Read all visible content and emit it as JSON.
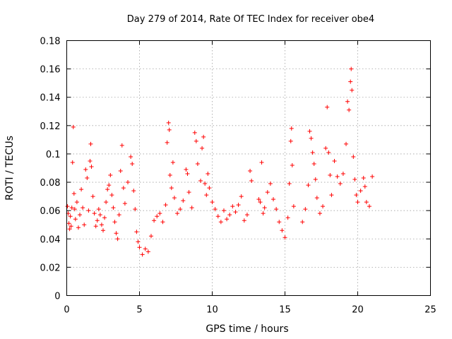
{
  "chart_data": {
    "type": "scatter",
    "title": "Day 279 of 2014, Rate Of TEC Index for receiver obe4",
    "xlabel": "GPS time / hours",
    "ylabel": "ROTI / TECUs",
    "xlim": [
      0,
      25
    ],
    "ylim": [
      0,
      0.18
    ],
    "xticks": [
      0,
      5,
      10,
      15,
      20,
      25
    ],
    "xtick_labels": [
      "0",
      "5",
      "10",
      "15",
      "20",
      "25"
    ],
    "yticks": [
      0,
      0.02,
      0.04,
      0.06,
      0.08,
      0.1,
      0.12,
      0.14,
      0.16,
      0.18
    ],
    "ytick_labels": [
      "0",
      "0.02",
      "0.04",
      "0.06",
      "0.08",
      "0.1",
      "0.12",
      "0.14",
      "0.16",
      "0.18"
    ],
    "grid": true,
    "marker": "plus",
    "series": [
      {
        "color": "#ff0000",
        "points": [
          [
            0.05,
            0.063
          ],
          [
            0.1,
            0.058
          ],
          [
            0.15,
            0.051
          ],
          [
            0.2,
            0.047
          ],
          [
            0.25,
            0.056
          ],
          [
            0.3,
            0.049
          ],
          [
            0.35,
            0.062
          ],
          [
            0.4,
            0.094
          ],
          [
            0.45,
            0.119
          ],
          [
            0.5,
            0.072
          ],
          [
            0.55,
            0.061
          ],
          [
            0.6,
            0.054
          ],
          [
            0.7,
            0.066
          ],
          [
            0.8,
            0.048
          ],
          [
            0.9,
            0.057
          ],
          [
            1.0,
            0.075
          ],
          [
            1.1,
            0.062
          ],
          [
            1.2,
            0.05
          ],
          [
            1.3,
            0.089
          ],
          [
            1.4,
            0.083
          ],
          [
            1.5,
            0.06
          ],
          [
            1.6,
            0.095
          ],
          [
            1.65,
            0.107
          ],
          [
            1.7,
            0.091
          ],
          [
            1.8,
            0.07
          ],
          [
            1.9,
            0.058
          ],
          [
            2.0,
            0.049
          ],
          [
            2.1,
            0.053
          ],
          [
            2.2,
            0.061
          ],
          [
            2.3,
            0.057
          ],
          [
            2.4,
            0.05
          ],
          [
            2.5,
            0.046
          ],
          [
            2.6,
            0.055
          ],
          [
            2.7,
            0.066
          ],
          [
            2.8,
            0.075
          ],
          [
            2.9,
            0.078
          ],
          [
            3.0,
            0.085
          ],
          [
            3.1,
            0.071
          ],
          [
            3.2,
            0.062
          ],
          [
            3.3,
            0.052
          ],
          [
            3.4,
            0.044
          ],
          [
            3.5,
            0.04
          ],
          [
            3.6,
            0.057
          ],
          [
            3.7,
            0.088
          ],
          [
            3.8,
            0.106
          ],
          [
            3.9,
            0.076
          ],
          [
            4.0,
            0.065
          ],
          [
            4.2,
            0.08
          ],
          [
            4.4,
            0.098
          ],
          [
            4.5,
            0.093
          ],
          [
            4.6,
            0.074
          ],
          [
            4.7,
            0.061
          ],
          [
            4.8,
            0.045
          ],
          [
            4.9,
            0.038
          ],
          [
            5.0,
            0.034
          ],
          [
            5.2,
            0.029
          ],
          [
            5.4,
            0.033
          ],
          [
            5.6,
            0.031
          ],
          [
            5.8,
            0.042
          ],
          [
            6.0,
            0.053
          ],
          [
            6.2,
            0.056
          ],
          [
            6.4,
            0.058
          ],
          [
            6.6,
            0.052
          ],
          [
            6.8,
            0.064
          ],
          [
            6.9,
            0.108
          ],
          [
            7.0,
            0.122
          ],
          [
            7.05,
            0.117
          ],
          [
            7.1,
            0.085
          ],
          [
            7.2,
            0.076
          ],
          [
            7.3,
            0.094
          ],
          [
            7.4,
            0.069
          ],
          [
            7.6,
            0.058
          ],
          [
            7.8,
            0.061
          ],
          [
            8.0,
            0.067
          ],
          [
            8.2,
            0.089
          ],
          [
            8.3,
            0.086
          ],
          [
            8.4,
            0.073
          ],
          [
            8.6,
            0.062
          ],
          [
            8.8,
            0.115
          ],
          [
            8.9,
            0.109
          ],
          [
            9.0,
            0.093
          ],
          [
            9.2,
            0.081
          ],
          [
            9.3,
            0.104
          ],
          [
            9.4,
            0.112
          ],
          [
            9.5,
            0.079
          ],
          [
            9.6,
            0.071
          ],
          [
            9.7,
            0.086
          ],
          [
            9.8,
            0.076
          ],
          [
            10.0,
            0.066
          ],
          [
            10.2,
            0.061
          ],
          [
            10.4,
            0.056
          ],
          [
            10.6,
            0.052
          ],
          [
            10.8,
            0.06
          ],
          [
            11.0,
            0.054
          ],
          [
            11.2,
            0.057
          ],
          [
            11.4,
            0.063
          ],
          [
            11.6,
            0.059
          ],
          [
            11.8,
            0.064
          ],
          [
            12.0,
            0.07
          ],
          [
            12.2,
            0.053
          ],
          [
            12.4,
            0.057
          ],
          [
            12.6,
            0.088
          ],
          [
            12.7,
            0.081
          ],
          [
            13.2,
            0.068
          ],
          [
            13.3,
            0.066
          ],
          [
            13.4,
            0.094
          ],
          [
            13.5,
            0.058
          ],
          [
            13.6,
            0.062
          ],
          [
            13.8,
            0.073
          ],
          [
            14.0,
            0.079
          ],
          [
            14.2,
            0.068
          ],
          [
            14.4,
            0.061
          ],
          [
            14.6,
            0.052
          ],
          [
            14.8,
            0.046
          ],
          [
            15.0,
            0.041
          ],
          [
            15.2,
            0.055
          ],
          [
            15.3,
            0.079
          ],
          [
            15.4,
            0.109
          ],
          [
            15.45,
            0.118
          ],
          [
            15.5,
            0.092
          ],
          [
            15.6,
            0.063
          ],
          [
            16.2,
            0.052
          ],
          [
            16.4,
            0.061
          ],
          [
            16.6,
            0.078
          ],
          [
            16.7,
            0.116
          ],
          [
            16.8,
            0.111
          ],
          [
            16.9,
            0.101
          ],
          [
            17.0,
            0.093
          ],
          [
            17.1,
            0.082
          ],
          [
            17.2,
            0.069
          ],
          [
            17.4,
            0.058
          ],
          [
            17.6,
            0.063
          ],
          [
            17.8,
            0.104
          ],
          [
            17.9,
            0.133
          ],
          [
            18.0,
            0.101
          ],
          [
            18.1,
            0.085
          ],
          [
            18.2,
            0.071
          ],
          [
            18.4,
            0.095
          ],
          [
            18.6,
            0.084
          ],
          [
            18.8,
            0.079
          ],
          [
            19.0,
            0.086
          ],
          [
            19.2,
            0.107
          ],
          [
            19.3,
            0.137
          ],
          [
            19.4,
            0.131
          ],
          [
            19.5,
            0.151
          ],
          [
            19.55,
            0.16
          ],
          [
            19.6,
            0.145
          ],
          [
            19.7,
            0.098
          ],
          [
            19.8,
            0.082
          ],
          [
            19.9,
            0.071
          ],
          [
            20.0,
            0.066
          ],
          [
            20.2,
            0.074
          ],
          [
            20.4,
            0.083
          ],
          [
            20.5,
            0.077
          ],
          [
            20.6,
            0.066
          ],
          [
            20.8,
            0.063
          ],
          [
            21.0,
            0.084
          ]
        ]
      }
    ]
  }
}
